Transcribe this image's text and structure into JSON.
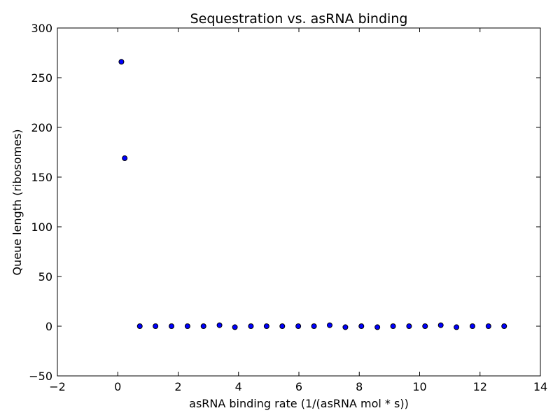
{
  "chart_data": {
    "type": "scatter",
    "title": "Sequestration vs. asRNA binding",
    "xlabel": "asRNA binding rate (1/(asRNA mol * s))",
    "ylabel": "Queue length (ribosomes)",
    "xlim": [
      -2,
      14
    ],
    "ylim": [
      -50,
      300
    ],
    "xticks": [
      -2,
      0,
      2,
      4,
      6,
      8,
      10,
      12,
      14
    ],
    "yticks": [
      -50,
      0,
      50,
      100,
      150,
      200,
      250,
      300
    ],
    "grid": false,
    "marker_color": "#0000ff",
    "marker_edge_color": "#000000",
    "x": [
      0.12,
      0.23,
      0.73,
      1.25,
      1.78,
      2.31,
      2.84,
      3.37,
      3.88,
      4.41,
      4.93,
      5.45,
      5.98,
      6.5,
      7.02,
      7.54,
      8.07,
      8.6,
      9.12,
      9.65,
      10.18,
      10.7,
      11.22,
      11.75,
      12.28,
      12.8
    ],
    "y": [
      266,
      169,
      0,
      0,
      0,
      0,
      0,
      1,
      -1,
      0,
      0,
      0,
      0,
      0,
      1,
      -1,
      0,
      -1,
      0,
      0,
      0,
      1,
      -1,
      0,
      0,
      0
    ]
  }
}
